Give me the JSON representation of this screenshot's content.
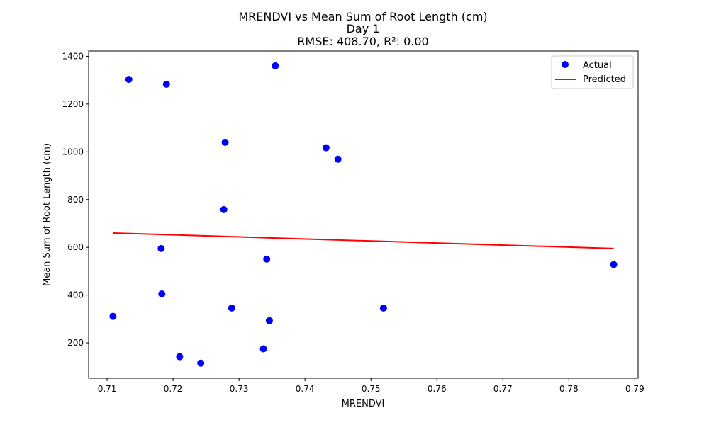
{
  "chart_data": {
    "type": "scatter",
    "title_lines": [
      "MRENDVI vs Mean Sum of Root Length (cm)",
      "Day 1",
      "RMSE: 408.70, R²: 0.00"
    ],
    "xlabel": "MRENDVI",
    "ylabel": "Mean Sum of Root Length (cm)",
    "xlim": [
      0.7072,
      0.7905
    ],
    "ylim": [
      52,
      1422
    ],
    "x_ticks": [
      0.71,
      0.72,
      0.73,
      0.74,
      0.75,
      0.76,
      0.77,
      0.78,
      0.79
    ],
    "x_tick_labels": [
      "0.71",
      "0.72",
      "0.73",
      "0.74",
      "0.75",
      "0.76",
      "0.77",
      "0.78",
      "0.79"
    ],
    "y_ticks": [
      200,
      400,
      600,
      800,
      1000,
      1200,
      1400
    ],
    "y_tick_labels": [
      "200",
      "400",
      "600",
      "800",
      "1000",
      "1200",
      "1400"
    ],
    "grid": false,
    "legend_position": "top-right",
    "series": [
      {
        "name": "Actual",
        "kind": "scatter",
        "color": "#0000ff",
        "points": [
          [
            0.7133,
            1303
          ],
          [
            0.719,
            1283
          ],
          [
            0.7355,
            1360
          ],
          [
            0.7279,
            1040
          ],
          [
            0.7432,
            1017
          ],
          [
            0.745,
            969
          ],
          [
            0.7277,
            758
          ],
          [
            0.7182,
            595
          ],
          [
            0.7342,
            551
          ],
          [
            0.7868,
            528
          ],
          [
            0.7183,
            405
          ],
          [
            0.7109,
            311
          ],
          [
            0.7289,
            346
          ],
          [
            0.7519,
            346
          ],
          [
            0.7346,
            293
          ],
          [
            0.7337,
            175
          ],
          [
            0.721,
            142
          ],
          [
            0.7242,
            115
          ]
        ]
      },
      {
        "name": "Predicted",
        "kind": "line",
        "color": "#ff0000",
        "points": [
          [
            0.7109,
            660
          ],
          [
            0.7868,
            595
          ]
        ]
      }
    ]
  }
}
